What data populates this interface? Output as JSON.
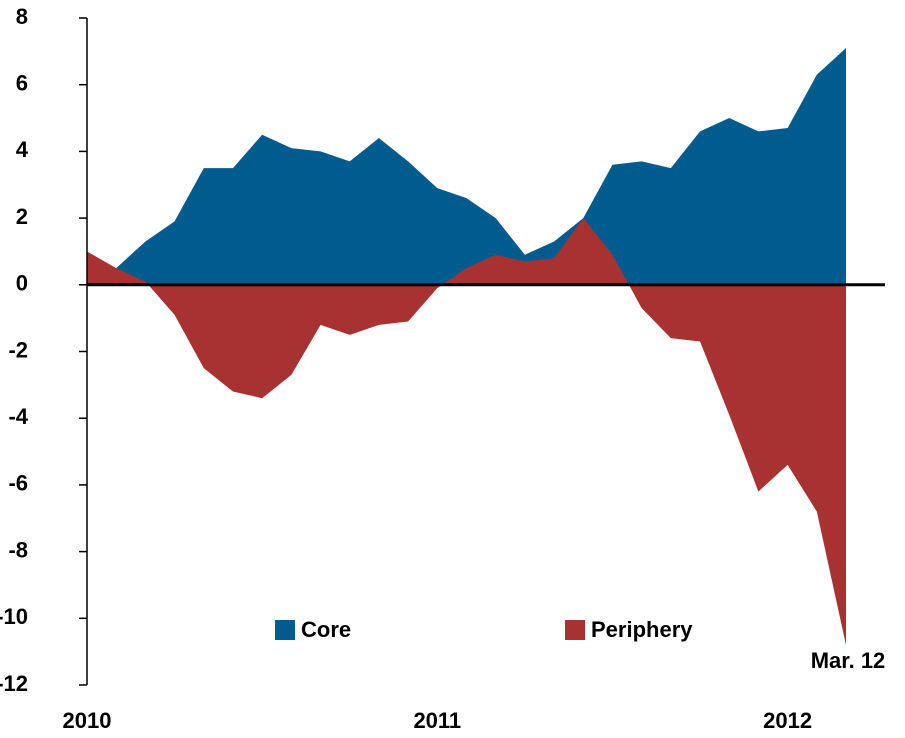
{
  "chart_data": {
    "type": "area",
    "categories": [
      "2010",
      null,
      null,
      null,
      null,
      null,
      null,
      null,
      null,
      null,
      null,
      null,
      "2011",
      null,
      null,
      null,
      null,
      null,
      null,
      null,
      null,
      null,
      null,
      null,
      "2012",
      null,
      null
    ],
    "series": [
      {
        "name": "Core",
        "color": "#005b8f",
        "values": [
          0,
          0.5,
          1.3,
          1.9,
          3.5,
          3.5,
          4.5,
          4.1,
          4.0,
          3.7,
          4.4,
          3.7,
          2.9,
          2.6,
          2.0,
          0.9,
          1.3,
          2.0,
          3.6,
          3.7,
          3.5,
          4.6,
          5.0,
          4.6,
          4.7,
          6.3,
          7.1
        ]
      },
      {
        "name": "Periphery",
        "color": "#a83232",
        "values": [
          1.0,
          0.5,
          0.1,
          -0.9,
          -2.5,
          -3.2,
          -3.4,
          -2.7,
          -1.2,
          -1.5,
          -1.2,
          -1.1,
          -0.1,
          0.5,
          0.9,
          0.7,
          0.8,
          2.0,
          0.9,
          -0.7,
          -1.6,
          -1.7,
          -3.9,
          -6.2,
          -5.4,
          -6.8,
          -10.8
        ]
      }
    ],
    "ylim": [
      -12,
      8
    ],
    "yticks": [
      -12,
      -10,
      -8,
      -6,
      -4,
      -2,
      0,
      2,
      4,
      6,
      8
    ],
    "annotation": "Mar. 12",
    "legend": "bottom",
    "grid": false
  }
}
